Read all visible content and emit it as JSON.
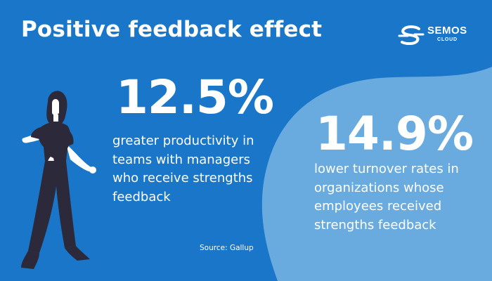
{
  "title": "Positive feedback effect",
  "logo": {
    "name": "SEMOS",
    "sub": "CLOUD"
  },
  "stats": [
    {
      "value": "12.5%",
      "description": "greater productivity in teams with managers who receive strengths feedback"
    },
    {
      "value": "14.9%",
      "description": "lower turnover rates in organizations whose employees received strengths feedback"
    }
  ],
  "source": "Source: Gallup",
  "colors": {
    "background": "#1976c8",
    "blob": "#69abdf",
    "text": "#ffffff",
    "figure_dark": "#2c2a3a",
    "figure_skin": "#ffffff"
  },
  "icons": {
    "logo": "semos-s-swoosh-icon",
    "illustration": "woman-figure-illustration"
  }
}
